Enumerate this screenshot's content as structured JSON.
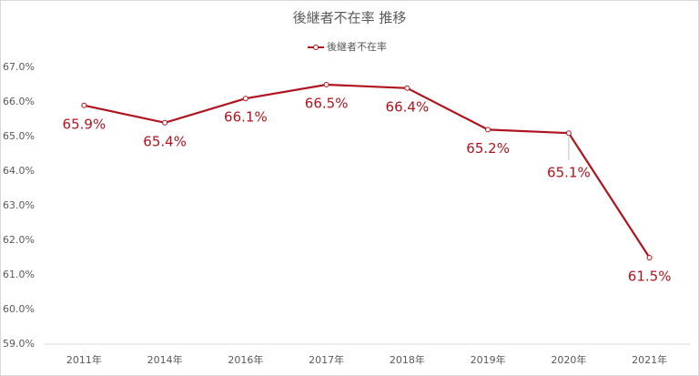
{
  "chart_data": {
    "type": "line",
    "title": "後継者不在率 推移",
    "categories": [
      "2011年",
      "2014年",
      "2016年",
      "2017年",
      "2018年",
      "2019年",
      "2020年",
      "2021年"
    ],
    "series": [
      {
        "name": "後継者不在率",
        "color": "#b0141e",
        "values": [
          65.9,
          65.4,
          66.1,
          66.5,
          66.4,
          65.2,
          65.1,
          61.5
        ],
        "value_labels": [
          "65.9%",
          "65.4%",
          "66.1%",
          "66.5%",
          "66.4%",
          "65.2%",
          "65.1%",
          "61.5%"
        ]
      }
    ],
    "ylim": [
      59,
      67
    ],
    "yticks": [
      {
        "value": 59,
        "label": "59.0%"
      },
      {
        "value": 60,
        "label": "60.0%"
      },
      {
        "value": 61,
        "label": "61.0%"
      },
      {
        "value": 62,
        "label": "62.0%"
      },
      {
        "value": 63,
        "label": "63.0%"
      },
      {
        "value": 64,
        "label": "64.0%"
      },
      {
        "value": 65,
        "label": "65.0%"
      },
      {
        "value": 66,
        "label": "66.0%"
      },
      {
        "value": 67,
        "label": "67.0%"
      }
    ],
    "legend": "top"
  }
}
